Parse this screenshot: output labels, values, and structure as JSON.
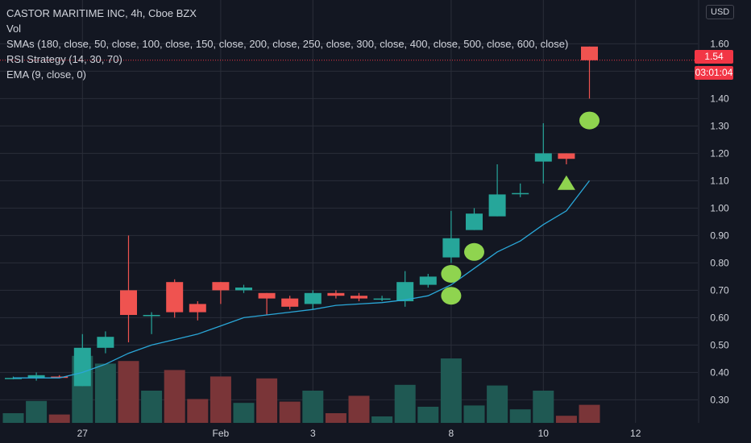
{
  "chart_data": {
    "type": "candlestick",
    "title": "CASTOR MARITIME INC, 4h, Cboe BZX",
    "currency": "USD",
    "indicators": [
      "Vol",
      "SMAs (180, close, 50, close, 100, close, 150, close, 200, close, 250, close, 300, close, 400, close, 500, close, 600, close)",
      "RSI Strategy (14, 30, 70)",
      "EMA (9, close, 0)"
    ],
    "y_ticks": [
      "1.60",
      "1.50",
      "1.40",
      "1.30",
      "1.20",
      "1.10",
      "1.00",
      "0.90",
      "0.80",
      "0.70",
      "0.60",
      "0.50",
      "0.40",
      "0.30"
    ],
    "x_ticks": [
      {
        "label": "27",
        "bar": 3
      },
      {
        "label": "Feb",
        "bar": 9
      },
      {
        "label": "3",
        "bar": 13
      },
      {
        "label": "8",
        "bar": 19
      },
      {
        "label": "10",
        "bar": 23
      },
      {
        "label": "12",
        "bar": 27
      }
    ],
    "ylim": [
      0.21,
      1.71
    ],
    "last_price": "1.54",
    "countdown": "03:01:04",
    "candles": [
      {
        "o": 0.38,
        "h": 0.385,
        "l": 0.375,
        "c": 0.38
      },
      {
        "o": 0.38,
        "h": 0.4,
        "l": 0.37,
        "c": 0.39
      },
      {
        "o": 0.385,
        "h": 0.39,
        "l": 0.38,
        "c": 0.38
      },
      {
        "o": 0.35,
        "h": 0.54,
        "l": 0.35,
        "c": 0.49
      },
      {
        "o": 0.49,
        "h": 0.55,
        "l": 0.47,
        "c": 0.53
      },
      {
        "o": 0.7,
        "h": 0.9,
        "l": 0.51,
        "c": 0.61
      },
      {
        "o": 0.61,
        "h": 0.62,
        "l": 0.54,
        "c": 0.61
      },
      {
        "o": 0.73,
        "h": 0.74,
        "l": 0.6,
        "c": 0.62
      },
      {
        "o": 0.65,
        "h": 0.66,
        "l": 0.59,
        "c": 0.62
      },
      {
        "o": 0.73,
        "h": 0.73,
        "l": 0.65,
        "c": 0.7
      },
      {
        "o": 0.7,
        "h": 0.72,
        "l": 0.69,
        "c": 0.71
      },
      {
        "o": 0.69,
        "h": 0.69,
        "l": 0.61,
        "c": 0.67
      },
      {
        "o": 0.67,
        "h": 0.68,
        "l": 0.63,
        "c": 0.64
      },
      {
        "o": 0.65,
        "h": 0.7,
        "l": 0.63,
        "c": 0.69
      },
      {
        "o": 0.69,
        "h": 0.7,
        "l": 0.67,
        "c": 0.68
      },
      {
        "o": 0.68,
        "h": 0.69,
        "l": 0.66,
        "c": 0.67
      },
      {
        "o": 0.67,
        "h": 0.68,
        "l": 0.66,
        "c": 0.67
      },
      {
        "o": 0.66,
        "h": 0.77,
        "l": 0.64,
        "c": 0.73
      },
      {
        "o": 0.72,
        "h": 0.76,
        "l": 0.71,
        "c": 0.75
      },
      {
        "o": 0.82,
        "h": 0.99,
        "l": 0.8,
        "c": 0.89
      },
      {
        "o": 0.92,
        "h": 1.0,
        "l": 0.92,
        "c": 0.98
      },
      {
        "o": 0.97,
        "h": 1.16,
        "l": 0.97,
        "c": 1.05
      },
      {
        "o": 1.055,
        "h": 1.09,
        "l": 1.04,
        "c": 1.055
      },
      {
        "o": 1.17,
        "h": 1.31,
        "l": 1.09,
        "c": 1.2
      },
      {
        "o": 1.2,
        "h": 1.2,
        "l": 1.16,
        "c": 1.18
      },
      {
        "o": 1.59,
        "h": 1.59,
        "l": 1.4,
        "c": 1.54
      }
    ],
    "volume": [
      0.15,
      0.34,
      0.13,
      1.04,
      0.92,
      0.96,
      0.5,
      0.82,
      0.37,
      0.72,
      0.31,
      0.69,
      0.33,
      0.5,
      0.15,
      0.42,
      0.1,
      0.59,
      0.25,
      1.0,
      0.27,
      0.58,
      0.21,
      0.5,
      0.11,
      0.28
    ],
    "ema": [
      0.38,
      0.38,
      0.38,
      0.4,
      0.43,
      0.47,
      0.5,
      0.52,
      0.54,
      0.57,
      0.6,
      0.61,
      0.62,
      0.63,
      0.645,
      0.65,
      0.655,
      0.665,
      0.68,
      0.72,
      0.78,
      0.84,
      0.88,
      0.94,
      0.99,
      1.1
    ],
    "signals": [
      {
        "bar": 19,
        "price": 0.68,
        "shape": "circle"
      },
      {
        "bar": 19,
        "price": 0.76,
        "shape": "circle"
      },
      {
        "bar": 20,
        "price": 0.84,
        "shape": "circle"
      },
      {
        "bar": 24,
        "price": 1.09,
        "shape": "triangle"
      },
      {
        "bar": 25,
        "price": 1.32,
        "shape": "circle"
      }
    ],
    "colors": {
      "up": "#26a69a",
      "down": "#ef5350",
      "up_volume": "#1f5953",
      "down_volume": "#7a3538",
      "ema": "#2aa7d8",
      "signal": "#8fd44f",
      "grid": "#2a2e39",
      "axis_text": "#d1d4dc",
      "background": "#131722"
    }
  }
}
